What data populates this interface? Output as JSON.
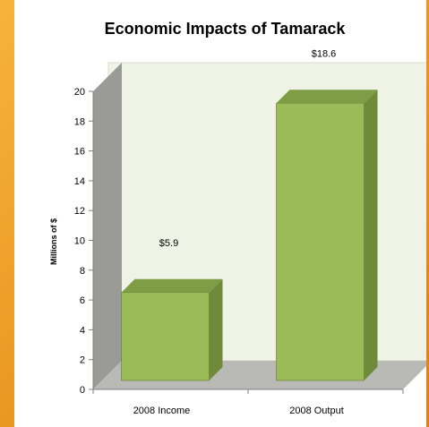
{
  "chart_data": {
    "type": "bar",
    "title": "Economic Impacts of Tamarack",
    "xlabel": "",
    "ylabel": "Millions of $",
    "categories": [
      "2008 Income",
      "2008 Output"
    ],
    "values": [
      5.9,
      18.6
    ],
    "data_labels": [
      "$5.9",
      "$18.6"
    ],
    "ylim": [
      0,
      20
    ],
    "y_ticks": [
      "0",
      "2",
      "4",
      "6",
      "8",
      "10",
      "12",
      "14",
      "16",
      "18",
      "20"
    ],
    "style": "3d",
    "colors": {
      "bar_front": "#9bbb59",
      "bar_side": "#6e8a3a",
      "bar_top": "#7f9d45",
      "back_wall": "#eef3e6",
      "side_wall": "#9a9b97",
      "floor": "#b9bab6",
      "border": "#e8951f"
    }
  }
}
